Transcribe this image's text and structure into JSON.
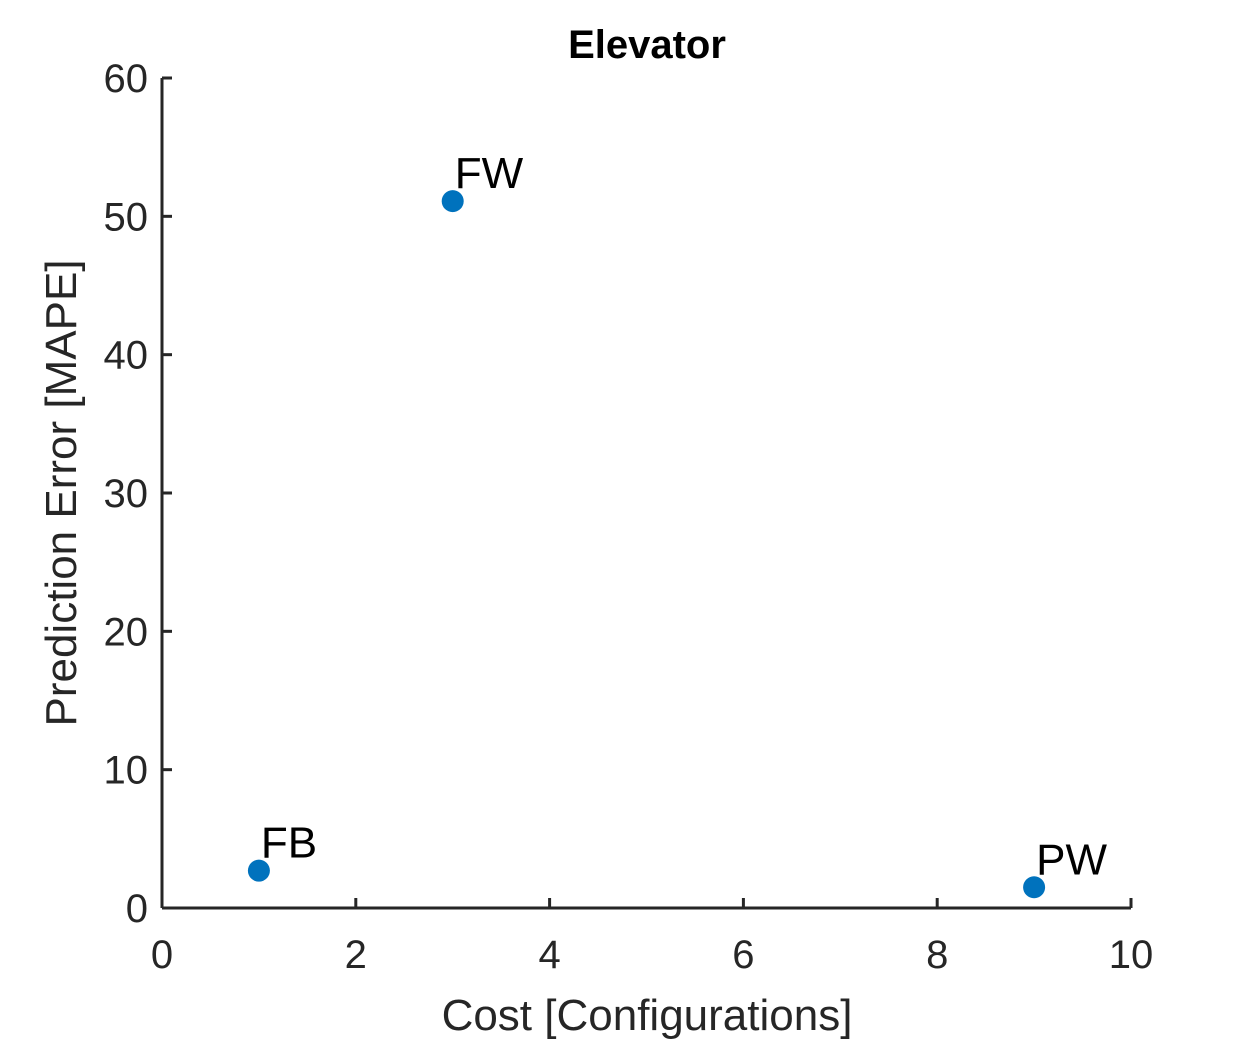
{
  "chart_data": {
    "type": "scatter",
    "title": "Elevator",
    "xlabel": "Cost [Configurations]",
    "ylabel": "Prediction Error [MAPE]",
    "xlim": [
      0,
      10
    ],
    "ylim": [
      0,
      60
    ],
    "xticks": [
      0,
      2,
      4,
      6,
      8,
      10
    ],
    "yticks": [
      0,
      10,
      20,
      30,
      40,
      50,
      60
    ],
    "xtick_labels": [
      "0",
      "2",
      "4",
      "6",
      "8",
      "10"
    ],
    "ytick_labels": [
      "0",
      "10",
      "20",
      "30",
      "40",
      "50",
      "60"
    ],
    "grid": false,
    "points": [
      {
        "label": "FB",
        "x": 1,
        "y": 2.7
      },
      {
        "label": "FW",
        "x": 3,
        "y": 51.1
      },
      {
        "label": "PW",
        "x": 9,
        "y": 1.5
      }
    ],
    "marker_color": "#0072BD"
  }
}
